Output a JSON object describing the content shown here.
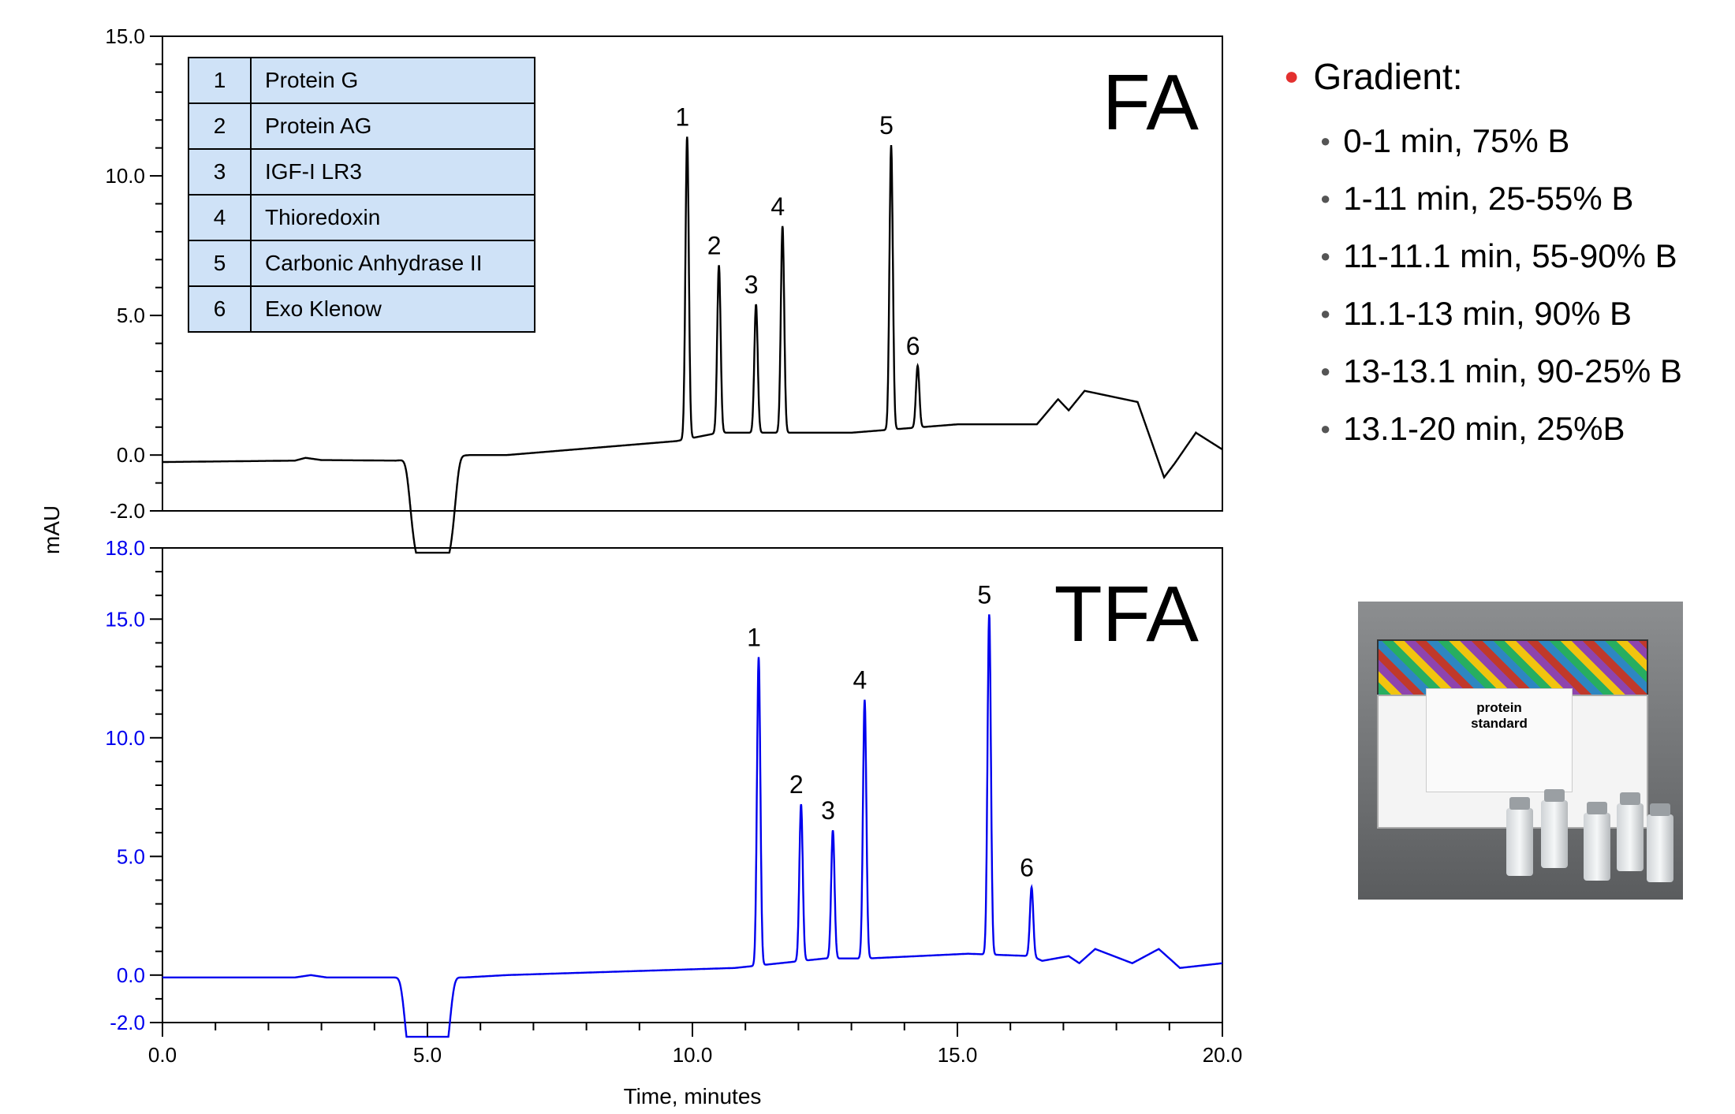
{
  "chart_data": [
    {
      "type": "line",
      "label": "FA",
      "xlim": [
        0,
        20
      ],
      "ylim": [
        -2,
        15
      ],
      "yticks": [
        -2,
        0,
        5,
        10,
        15
      ],
      "ytick_labels": [
        "-2.0",
        "0.0",
        "5.0",
        "10.0",
        "15.0"
      ],
      "color": "#000000",
      "legend_table": [
        {
          "num": "1",
          "name": "Protein G"
        },
        {
          "num": "2",
          "name": "Protein AG"
        },
        {
          "num": "3",
          "name": "IGF-I LR3"
        },
        {
          "num": "4",
          "name": "Thioredoxin"
        },
        {
          "num": "5",
          "name": "Carbonic Anhydrase II"
        },
        {
          "num": "6",
          "name": "Exo Klenow"
        }
      ],
      "baseline": [
        [
          0,
          -0.25
        ],
        [
          2.5,
          -0.2
        ],
        [
          2.7,
          -0.1
        ],
        [
          3.0,
          -0.18
        ],
        [
          4.4,
          -0.2
        ],
        [
          5.8,
          0.0
        ],
        [
          6.5,
          0.0
        ],
        [
          9.7,
          0.5
        ],
        [
          10.5,
          0.8
        ],
        [
          13.0,
          0.8
        ],
        [
          15.0,
          1.1
        ],
        [
          16.5,
          1.1
        ],
        [
          16.9,
          2.0
        ],
        [
          17.1,
          1.6
        ],
        [
          17.4,
          2.3
        ],
        [
          18.4,
          1.9
        ],
        [
          18.9,
          -0.8
        ],
        [
          19.1,
          -0.3
        ],
        [
          19.5,
          0.8
        ],
        [
          20.0,
          0.2
        ]
      ],
      "dip": {
        "start": 4.4,
        "end": 5.8,
        "min": -4.0
      },
      "peaks": [
        {
          "label": "1",
          "x": 9.9,
          "y": 11.4
        },
        {
          "label": "2",
          "x": 10.5,
          "y": 6.8
        },
        {
          "label": "3",
          "x": 11.2,
          "y": 5.4
        },
        {
          "label": "4",
          "x": 11.7,
          "y": 8.2
        },
        {
          "label": "5",
          "x": 13.75,
          "y": 11.1
        },
        {
          "label": "6",
          "x": 14.25,
          "y": 3.2
        }
      ]
    },
    {
      "type": "line",
      "label": "TFA",
      "xlim": [
        0,
        20
      ],
      "ylim": [
        -2,
        18
      ],
      "yticks": [
        -2,
        0,
        5,
        10,
        15,
        18
      ],
      "ytick_labels": [
        "-2.0",
        "0.0",
        "5.0",
        "10.0",
        "15.0",
        "18.0"
      ],
      "color": "#0000ee",
      "baseline": [
        [
          0,
          -0.1
        ],
        [
          2.5,
          -0.1
        ],
        [
          2.8,
          0.0
        ],
        [
          3.1,
          -0.1
        ],
        [
          4.3,
          -0.1
        ],
        [
          5.7,
          -0.1
        ],
        [
          6.5,
          0.0
        ],
        [
          10.8,
          0.3
        ],
        [
          12.5,
          0.7
        ],
        [
          13.3,
          0.7
        ],
        [
          15.2,
          0.9
        ],
        [
          16.4,
          0.8
        ],
        [
          16.6,
          0.6
        ],
        [
          17.1,
          0.8
        ],
        [
          17.3,
          0.5
        ],
        [
          17.6,
          1.1
        ],
        [
          18.3,
          0.5
        ],
        [
          18.8,
          1.1
        ],
        [
          19.2,
          0.3
        ],
        [
          20.0,
          0.5
        ]
      ],
      "dip": {
        "start": 4.3,
        "end": 5.7,
        "min": -4.4
      },
      "peaks": [
        {
          "label": "1",
          "x": 11.25,
          "y": 13.4
        },
        {
          "label": "2",
          "x": 12.05,
          "y": 7.2
        },
        {
          "label": "3",
          "x": 12.65,
          "y": 6.1
        },
        {
          "label": "4",
          "x": 13.25,
          "y": 11.6
        },
        {
          "label": "5",
          "x": 15.6,
          "y": 15.2
        },
        {
          "label": "6",
          "x": 16.4,
          "y": 3.7
        }
      ]
    }
  ],
  "axes": {
    "ylabel": "mAU",
    "xlabel": "Time, minutes",
    "xticks": [
      0,
      5,
      10,
      15,
      20
    ],
    "xtick_labels": [
      "0.0",
      "5.0",
      "10.0",
      "15.0",
      "20.0"
    ]
  },
  "gradient": {
    "title": "Gradient:",
    "steps": [
      "0-1 min, 75% B",
      "1-11 min, 25-55% B",
      "11-11.1 min, 55-90% B",
      "11.1-13 min, 90% B",
      "13-13.1 min, 90-25% B",
      "13.1-20 min, 25%B"
    ],
    "bullet_color": "#e3302f"
  },
  "photo": {
    "card_text_1": "protein",
    "card_text_2": "standard"
  }
}
